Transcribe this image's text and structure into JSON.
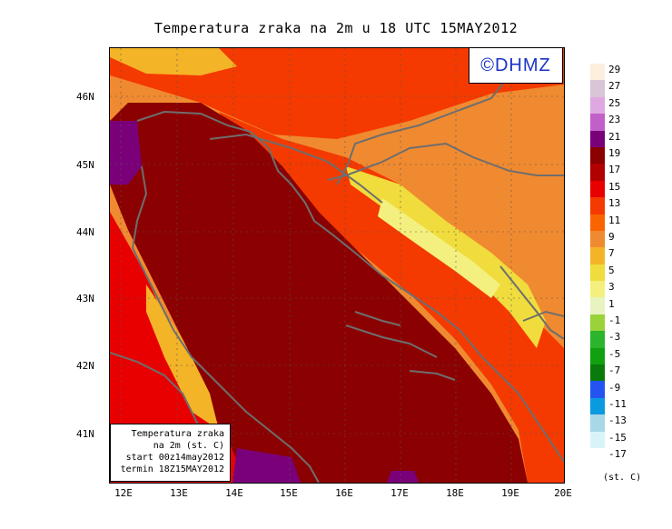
{
  "title": "Temperatura zraka na 2m u 18 UTC 15MAY2012",
  "logo": "©DHMZ",
  "info_box": {
    "line1": "Temperatura zraka",
    "line2": "na 2m (st. C)",
    "line3": "start 00z14may2012",
    "line4": "termin 18Z15MAY2012"
  },
  "lat_labels": [
    "46N",
    "45N",
    "44N",
    "43N",
    "42N",
    "41N"
  ],
  "lon_labels": [
    "12E",
    "13E",
    "14E",
    "15E",
    "16E",
    "17E",
    "18E",
    "19E",
    "20E"
  ],
  "legend": {
    "labels": [
      "29",
      "27",
      "25",
      "23",
      "21",
      "19",
      "17",
      "15",
      "13",
      "11",
      "9",
      "7",
      "5",
      "3",
      "1",
      "-1",
      "-3",
      "-5",
      "-7",
      "-9",
      "-11",
      "-13",
      "-15",
      "-17"
    ],
    "colors": [
      "#fdeedd",
      "#d8c5d8",
      "#e0a8e0",
      "#c060c8",
      "#7a007a",
      "#8b0000",
      "#b00000",
      "#e80000",
      "#f43a00",
      "#fa6400",
      "#f08a30",
      "#f4b428",
      "#f0dc3c",
      "#f4f080",
      "#e8f4c0",
      "#9ad23a",
      "#2cb42c",
      "#10a010",
      "#0a7a0a",
      "#2454f0",
      "#0a9ae0",
      "#a8d8e8",
      "#d8f4f8",
      "#ffffff"
    ],
    "unit": "(st. C)"
  }
}
